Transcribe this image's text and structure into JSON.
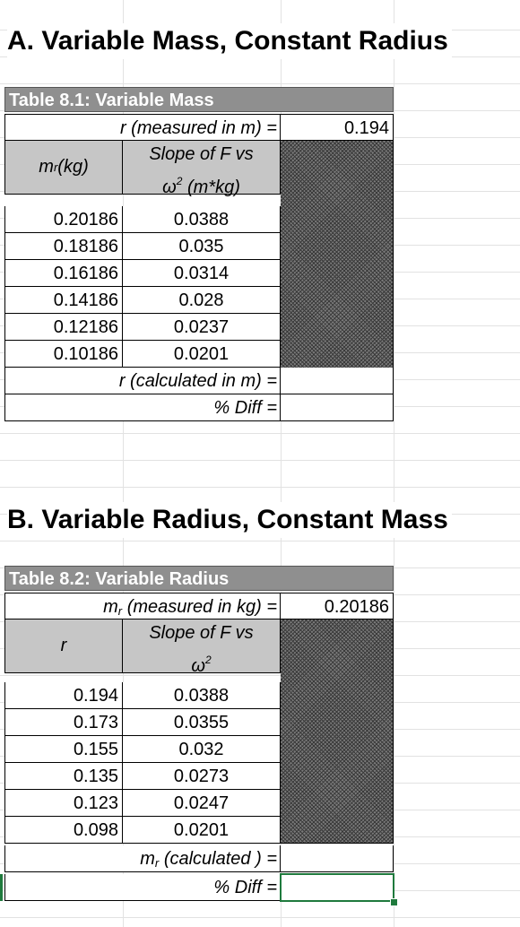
{
  "sectionA": {
    "heading": "A. Variable Mass, Constant Radius",
    "table_title": "Table 8.1: Variable Mass",
    "given_label": "r (measured in m) =",
    "given_value": "0.194",
    "col1_header": "m",
    "col1_sub": "r",
    "col1_unit": " (kg)",
    "col2_header_line1": "Slope of F vs",
    "col2_header_line2a": "ω",
    "col2_header_sup": "2",
    "col2_header_line2b": " (m*kg)",
    "rows": [
      {
        "c1": "0.20186",
        "c2": "0.0388"
      },
      {
        "c1": "0.18186",
        "c2": "0.035"
      },
      {
        "c1": "0.16186",
        "c2": "0.0314"
      },
      {
        "c1": "0.14186",
        "c2": "0.028"
      },
      {
        "c1": "0.12186",
        "c2": "0.0237"
      },
      {
        "c1": "0.10186",
        "c2": "0.0201"
      }
    ],
    "calc_label": "r (calculated in m)  =",
    "calc_value": "",
    "diff_label": "% Diff =",
    "diff_value": ""
  },
  "sectionB": {
    "heading": "B. Variable Radius, Constant Mass",
    "table_title": "Table 8.2: Variable Radius",
    "given_label_pre": "m",
    "given_label_sub": "r",
    "given_label_post": " (measured in kg)  =",
    "given_value": "0.20186",
    "col1_header": "r",
    "col2_header_line1": "Slope of F vs",
    "col2_header_line2a": "ω",
    "col2_header_sup": "2",
    "rows": [
      {
        "c1": "0.194",
        "c2": "0.0388"
      },
      {
        "c1": "0.173",
        "c2": "0.0355"
      },
      {
        "c1": "0.155",
        "c2": "0.032"
      },
      {
        "c1": "0.135",
        "c2": "0.0273"
      },
      {
        "c1": "0.123",
        "c2": "0.0247"
      },
      {
        "c1": "0.098",
        "c2": "0.0201"
      }
    ],
    "calc_label_pre": "m",
    "calc_label_sub": "r",
    "calc_label_post": " (calculated ) =",
    "calc_value": "",
    "diff_label": "% Diff =",
    "diff_value": ""
  },
  "colors": {
    "title_bar": "#8f8f8f",
    "header_fill": "#c6c6c6",
    "selection": "#1f7a3d",
    "hatch": "#3a3a3a"
  }
}
